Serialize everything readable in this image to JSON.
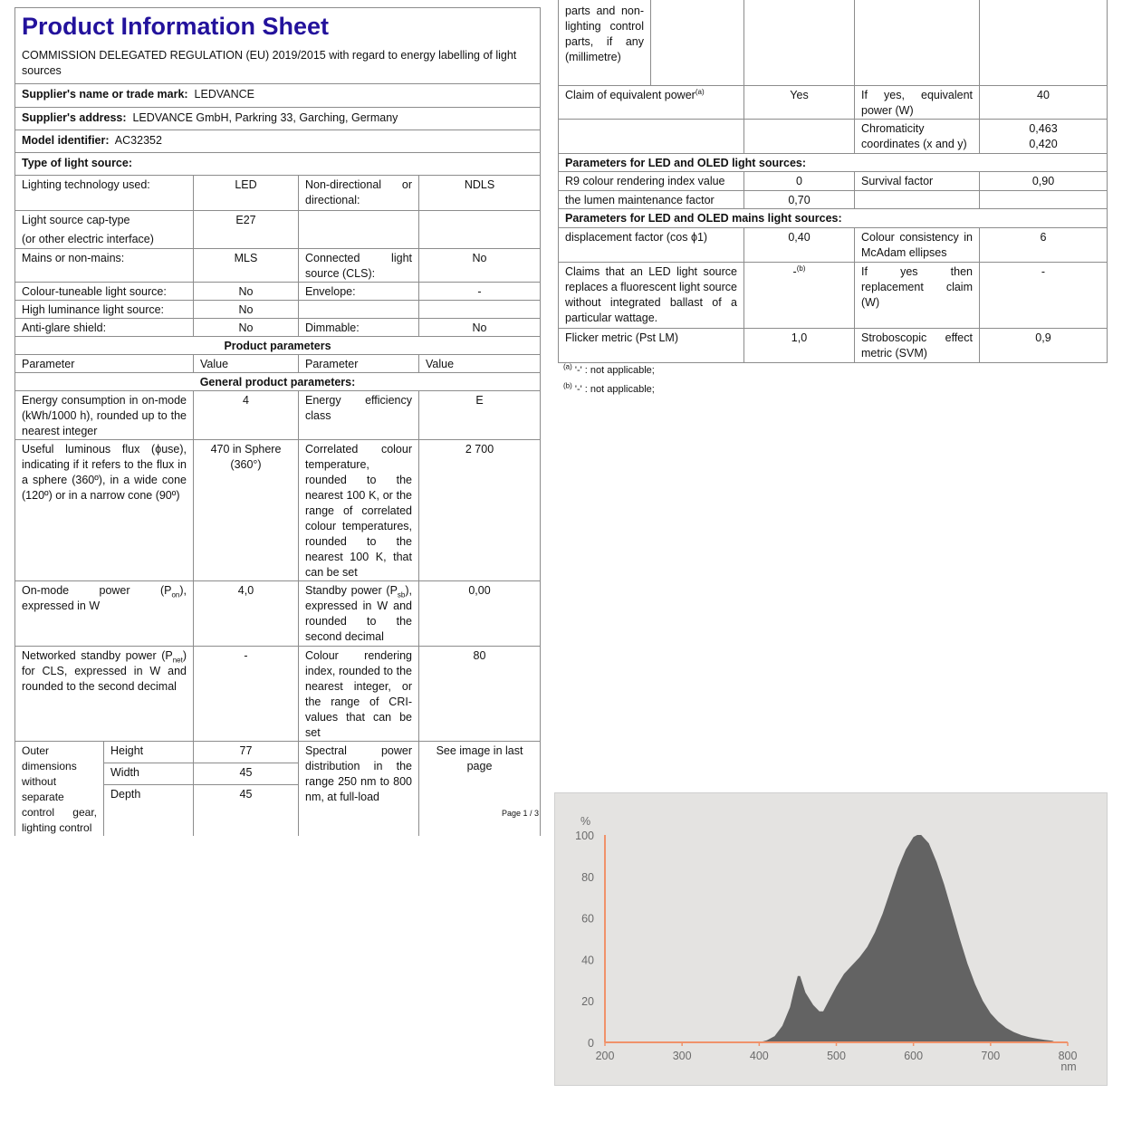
{
  "header": {
    "title": "Product Information Sheet",
    "regulation": "COMMISSION DELEGATED REGULATION (EU) 2019/2015 with regard to energy labelling of light sources",
    "supplier_label": "Supplier's name or trade mark:",
    "supplier_value": "LEDVANCE",
    "address_label": "Supplier's address:",
    "address_value": "LEDVANCE GmbH, Parkring 33, Garching, Germany",
    "model_label": "Model identifier:",
    "model_value": "AC32352",
    "type_label": "Type of light source:"
  },
  "type_rows": [
    {
      "p1": "Lighting technology used:",
      "v1": "LED",
      "p2": "Non-directional or directional:",
      "v2": "NDLS"
    },
    {
      "p1": "Light source cap-type",
      "p1b": "(or other electric interface)",
      "v1": "E27",
      "p2": "",
      "v2": ""
    },
    {
      "p1": "Mains or non-mains:",
      "v1": "MLS",
      "p2": "Connected light source (CLS):",
      "v2": "No"
    },
    {
      "p1": "Colour-tuneable light source:",
      "v1": "No",
      "p2": "Envelope:",
      "v2": "-"
    },
    {
      "p1": "High luminance light source:",
      "v1": "No",
      "p2": "",
      "v2": ""
    },
    {
      "p1": "Anti-glare shield:",
      "v1": "No",
      "p2": "Dimmable:",
      "v2": "No"
    }
  ],
  "product_params": {
    "heading": "Product parameters",
    "col_parameter": "Parameter",
    "col_value": "Value",
    "general_heading": "General product parameters:",
    "energy": {
      "p1": "Energy consumption in on-mode (kWh/1000 h), rounded up to the nearest integer",
      "v1": "4",
      "p2": "Energy efficiency class",
      "v2": "E"
    },
    "flux": {
      "p1": "Useful luminous flux (ϕuse), indicating if it refers to the flux in a sphere (360º), in a wide cone (120º) or in a narrow cone (90º)",
      "v1": "470 in Sphere (360°)",
      "p2": "Correlated colour temperature, rounded to the nearest 100 K, or the range of correlated colour temperatures, rounded to the nearest 100 K, that can be set",
      "v2": "2 700"
    },
    "onmode": {
      "p1_pre": "On-mode power (P",
      "p1_sub": "on",
      "p1_post": "), expressed in W",
      "v1": "4,0",
      "p2_pre": "Standby power (P",
      "p2_sub": "sb",
      "p2_post": "), expressed in W and rounded to the second decimal",
      "v2": "0,00"
    },
    "networked": {
      "p1_pre": "Networked standby power (P",
      "p1_sub": "net",
      "p1_post": ") for CLS, expressed in W and rounded to the second decimal",
      "v1": "-",
      "p2": "Colour rendering index, rounded to the nearest integer, or the range of CRI-values that can be set",
      "v2": "80"
    },
    "dimensions": {
      "p1": "Outer dimensions without separate control gear, lighting control parts and non-lighting control parts, if any (millimetre)",
      "p1_left": "Outer dimensions without separate control gear, lighting control",
      "p1_right": "parts and non-lighting control parts, if any (millimetre)",
      "sub": [
        {
          "label": "Height",
          "value": "77"
        },
        {
          "label": "Width",
          "value": "45"
        },
        {
          "label": "Depth",
          "value": "45"
        }
      ],
      "p2": "Spectral power distribution in the range 250 nm to 800 nm, at full-load",
      "v2": "See image in last page"
    },
    "claim": {
      "p1": "Claim of equivalent power",
      "p1_sup": "(a)",
      "v1": "Yes",
      "p2": "If yes, equivalent power (W)",
      "v2": "40"
    },
    "chromaticity": {
      "p2": "Chromaticity coordinates (x and y)",
      "x": "0,463",
      "y": "0,420"
    }
  },
  "led_params": {
    "heading": "Parameters for LED and OLED light sources:",
    "r9": {
      "p1": "R9 colour rendering index value",
      "v1": "0",
      "p2": "Survival factor",
      "v2": "0,90"
    },
    "lumen": {
      "p1": "the lumen maintenance factor",
      "v1": "0,70"
    }
  },
  "led_mains_params": {
    "heading": "Parameters for LED and OLED mains light sources:",
    "displacement": {
      "p1": "displacement factor (cos ϕ1)",
      "v1": "0,40",
      "p2": "Colour consistency in McAdam ellipses",
      "v2": "6"
    },
    "fluorescent": {
      "p1": "Claims that an LED light source replaces a fluorescent light source without integrated ballast of a particular wattage.",
      "v1": "-",
      "v1_sup": "(b)",
      "p2": "If yes then replacement claim (W)",
      "v2": "-"
    },
    "flicker": {
      "p1": "Flicker metric (Pst LM)",
      "v1": "1,0",
      "p2": "Stroboscopic effect metric (SVM)",
      "v2": "0,9"
    }
  },
  "footnotes": [
    {
      "mark": "(a)",
      "text": "'-' : not applicable;"
    },
    {
      "mark": "(b)",
      "text": "'-' : not applicable;"
    }
  ],
  "page": "Page 1 / 3",
  "chart_data": {
    "type": "area",
    "title": "",
    "ylabel": "%",
    "xlabel": "nm",
    "xlim": [
      200,
      800
    ],
    "ylim": [
      0,
      100
    ],
    "xticks": [
      200,
      300,
      400,
      500,
      600,
      700,
      800
    ],
    "yticks": [
      0,
      20,
      40,
      60,
      80,
      100
    ],
    "grid": false,
    "colors": {
      "fill": "#636363",
      "axis": "#f0926a",
      "background": "#e4e3e1"
    },
    "x": [
      400,
      410,
      420,
      430,
      440,
      445,
      450,
      453,
      460,
      470,
      478,
      483,
      490,
      500,
      510,
      520,
      530,
      540,
      550,
      560,
      570,
      580,
      590,
      600,
      605,
      610,
      620,
      630,
      640,
      650,
      660,
      670,
      680,
      690,
      700,
      710,
      720,
      730,
      740,
      750,
      760,
      770,
      780,
      785
    ],
    "y": [
      0,
      1,
      3,
      8,
      17,
      25,
      32,
      32,
      24,
      18,
      15,
      15,
      20,
      27,
      33,
      37,
      41,
      46,
      53,
      62,
      73,
      84,
      93,
      99,
      100,
      100,
      96,
      87,
      76,
      63,
      50,
      38,
      28,
      20,
      14,
      10,
      7,
      5,
      3.5,
      2.5,
      1.8,
      1.2,
      0.8,
      0
    ]
  }
}
